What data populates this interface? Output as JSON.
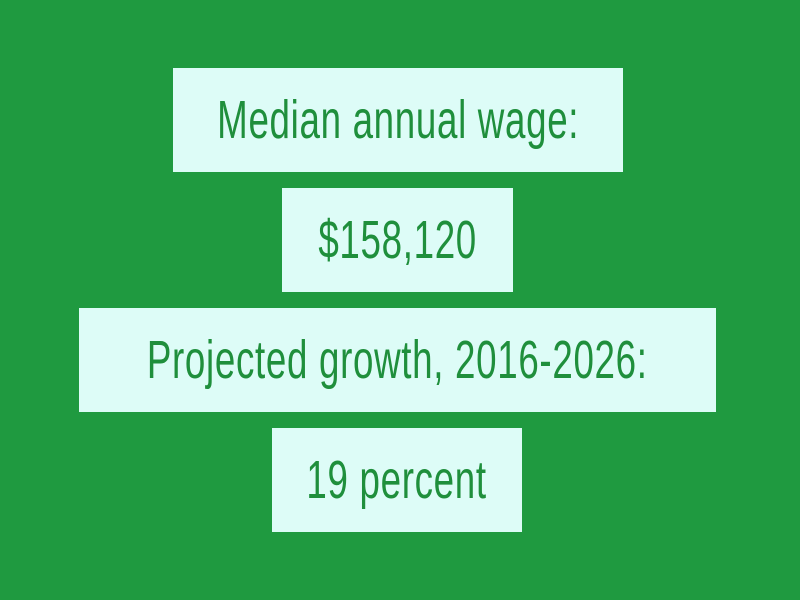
{
  "colors": {
    "background": "#1f9a40",
    "box": "#ddfcf7",
    "text": "#1f8f3c"
  },
  "lines": [
    "Median annual wage:",
    "$158,120",
    "Projected growth, 2016-2026:",
    "19 percent"
  ]
}
